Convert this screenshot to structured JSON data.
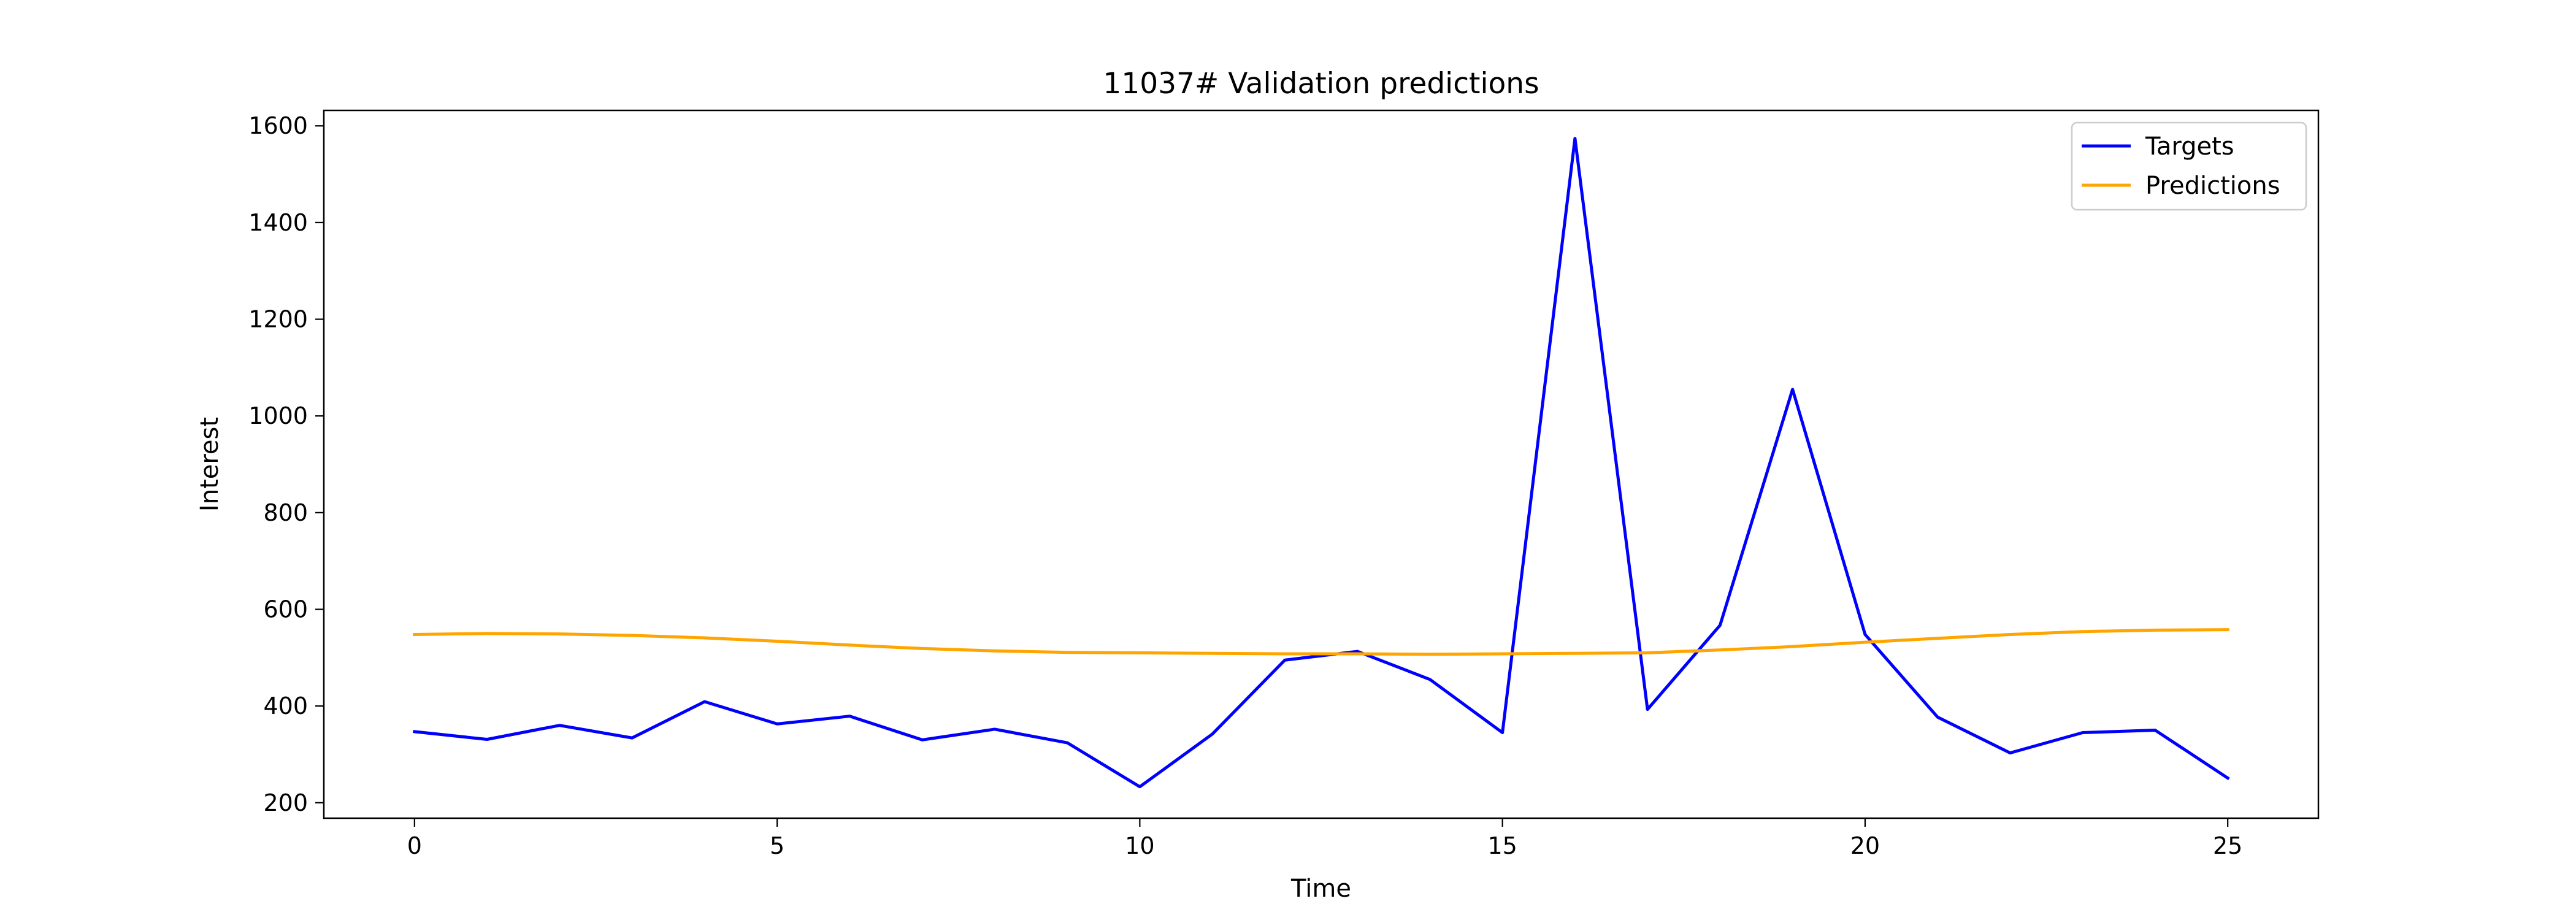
{
  "chart_data": {
    "type": "line",
    "title": "11037# Validation predictions",
    "xlabel": "Time",
    "ylabel": "Interest",
    "xlim": [
      -1.25,
      26.25
    ],
    "ylim": [
      168,
      1632
    ],
    "x_ticks": [
      0,
      5,
      10,
      15,
      20,
      25
    ],
    "y_ticks": [
      200,
      400,
      600,
      800,
      1000,
      1200,
      1400,
      1600
    ],
    "grid": false,
    "legend_position": "upper right",
    "x": [
      0,
      1,
      2,
      3,
      4,
      5,
      6,
      7,
      8,
      9,
      10,
      11,
      12,
      13,
      14,
      15,
      16,
      17,
      18,
      19,
      20,
      21,
      22,
      23,
      24,
      25
    ],
    "series": [
      {
        "name": "Targets",
        "color": "#0000ff",
        "values": [
          347,
          331,
          360,
          334,
          409,
          363,
          379,
          330,
          352,
          324,
          233,
          342,
          495,
          513,
          455,
          345,
          1574,
          393,
          567,
          1055,
          548,
          377,
          303,
          345,
          350,
          251
        ]
      },
      {
        "name": "Predictions",
        "color": "#ffa500",
        "values": [
          548,
          550,
          549,
          546,
          541,
          534,
          526,
          519,
          514,
          511,
          510,
          509,
          508,
          508,
          507,
          508,
          509,
          510,
          516,
          523,
          532,
          540,
          548,
          554,
          557,
          558
        ]
      }
    ]
  }
}
